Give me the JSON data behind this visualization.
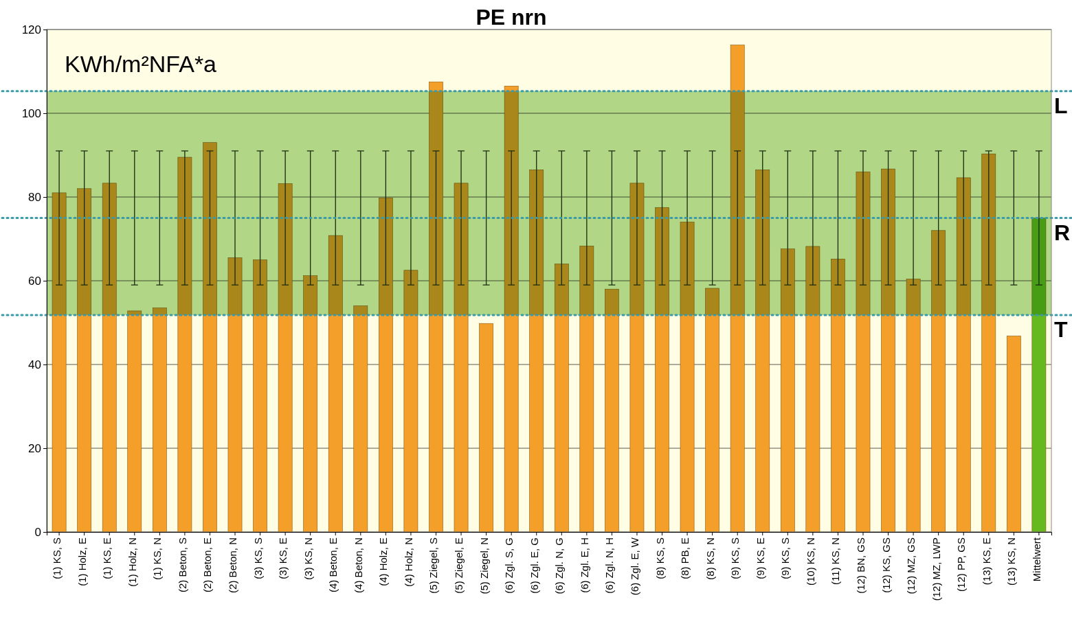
{
  "chart_data": {
    "type": "bar",
    "title": "PE nrn",
    "annotations": [
      "KWh/m²NFA*a"
    ],
    "categories": [
      "(1) KS, S",
      "(1) Holz, E",
      "(1) KS, E",
      "(1) Holz, N",
      "(1) KS, N",
      "(2) Beton, S",
      "(2) Beton, E",
      "(2) Beton, N",
      "(3) KS, S",
      "(3) KS, E",
      "(3) KS, N",
      "(4) Beton, E",
      "(4) Beton, N",
      "(4) Holz, E",
      "(4) Holz, N",
      "(5) Ziegel, S",
      "(5) Ziegel, E",
      "(5) Ziegel, N",
      "(6) Zgl. S, G",
      "(6) Zgl. E, G",
      "(6) Zgl. N, G",
      "(6) Zgl. E, H",
      "(6) Zgl. N, H",
      "(6) Zgl. E, W",
      "(8) KS, S",
      "(8) PB, E",
      "(8) KS, N",
      "(9) KS, S",
      "(9) KS, E",
      "(9) KS, S",
      "(10) KS, N",
      "(11) KS, N",
      "(12) BN, GS",
      "(12) KS, GS",
      "(12) MZ, GS",
      "(12) MZ, LWP",
      "(12) PP, GS",
      "(13) KS, E",
      "(13) KS, N",
      "Mittelwert"
    ],
    "values": [
      81,
      82,
      83.3,
      52.8,
      53.5,
      89.5,
      93,
      65.5,
      65,
      83.2,
      61.2,
      70.8,
      54,
      79.8,
      62.5,
      107.5,
      83.3,
      49.8,
      106.5,
      86.5,
      64,
      68.3,
      58,
      83.3,
      77.5,
      74,
      58.2,
      116.3,
      86.5,
      67.6,
      68.2,
      65.2,
      86,
      86.7,
      60.4,
      72,
      84.6,
      90.3,
      46.8,
      75
    ],
    "colors": [
      "#f5a030",
      "#f5a030",
      "#f5a030",
      "#f5a030",
      "#f5a030",
      "#f5a030",
      "#f5a030",
      "#f5a030",
      "#f5a030",
      "#f5a030",
      "#f5a030",
      "#f5a030",
      "#f5a030",
      "#f5a030",
      "#f5a030",
      "#f5a030",
      "#f5a030",
      "#f5a030",
      "#f5a030",
      "#f5a030",
      "#f5a030",
      "#f5a030",
      "#f5a030",
      "#f5a030",
      "#f5a030",
      "#f5a030",
      "#f5a030",
      "#f5a030",
      "#f5a030",
      "#f5a030",
      "#f5a030",
      "#f5a030",
      "#f5a030",
      "#f5a030",
      "#f5a030",
      "#f5a030",
      "#f5a030",
      "#f5a030",
      "#f5a030",
      "#66bb22"
    ],
    "errors": [
      [
        59,
        91
      ],
      [
        59,
        91
      ],
      [
        59,
        91
      ],
      [
        59,
        91
      ],
      [
        59,
        91
      ],
      [
        59,
        91
      ],
      [
        59,
        91
      ],
      [
        59,
        91
      ],
      [
        59,
        91
      ],
      [
        59,
        91
      ],
      [
        59,
        91
      ],
      [
        59,
        91
      ],
      [
        59,
        91
      ],
      [
        59,
        91
      ],
      [
        59,
        91
      ],
      [
        59,
        91
      ],
      [
        59,
        91
      ],
      [
        59,
        91
      ],
      [
        59,
        91
      ],
      [
        59,
        91
      ],
      [
        59,
        91
      ],
      [
        59,
        91
      ],
      [
        59,
        91
      ],
      [
        59,
        91
      ],
      [
        59,
        91
      ],
      [
        59,
        91
      ],
      [
        59,
        91
      ],
      [
        59,
        91
      ],
      [
        59,
        91
      ],
      [
        59,
        91
      ],
      [
        59,
        91
      ],
      [
        59,
        91
      ],
      [
        59,
        91
      ],
      [
        59,
        91
      ],
      [
        59,
        91
      ],
      [
        59,
        91
      ],
      [
        59,
        91
      ],
      [
        59,
        91
      ],
      [
        59,
        91
      ],
      [
        59,
        91
      ]
    ],
    "ylim": [
      0,
      120
    ],
    "yticks": [
      0,
      20,
      40,
      60,
      80,
      100,
      120
    ],
    "grid": "y",
    "bands": [
      {
        "axis": "y",
        "from": 0,
        "to": 120,
        "color": "#fffbd0"
      },
      {
        "axis": "y",
        "from": 51.8,
        "to": 105.3,
        "color": "#7cbf50"
      }
    ],
    "ref_lines": [
      {
        "axis": "y",
        "value": 105.3,
        "label": "L",
        "color": "#3a9aa8",
        "line_style": "dotted"
      },
      {
        "axis": "y",
        "value": 75,
        "label": "R",
        "color": "#3a9aa8",
        "line_style": "dotted"
      },
      {
        "axis": "y",
        "value": 51.8,
        "label": "T",
        "color": "#3a9aa8",
        "line_style": "dotted"
      }
    ]
  }
}
